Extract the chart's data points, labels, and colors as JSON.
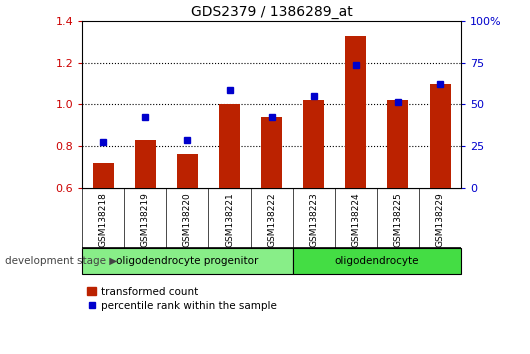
{
  "title": "GDS2379 / 1386289_at",
  "samples": [
    "GSM138218",
    "GSM138219",
    "GSM138220",
    "GSM138221",
    "GSM138222",
    "GSM138223",
    "GSM138224",
    "GSM138225",
    "GSM138229"
  ],
  "transformed_count": [
    0.72,
    0.83,
    0.76,
    1.0,
    0.94,
    1.02,
    1.33,
    1.02,
    1.1
  ],
  "percentile_rank_left": [
    0.82,
    0.94,
    0.83,
    1.07,
    0.94,
    1.04,
    1.19,
    1.01,
    1.1
  ],
  "ylim_left": [
    0.6,
    1.4
  ],
  "ylim_right": [
    0,
    100
  ],
  "yticks_left": [
    0.6,
    0.8,
    1.0,
    1.2,
    1.4
  ],
  "yticks_right": [
    0,
    25,
    50,
    75,
    100
  ],
  "bar_color": "#bb2200",
  "dot_color": "#0000cc",
  "background_color": "#ffffff",
  "left_tick_color": "#cc0000",
  "right_tick_color": "#0000cc",
  "xtick_bg_color": "#cccccc",
  "stage_groups": [
    {
      "label": "oligodendrocyte progenitor",
      "indices": [
        0,
        1,
        2,
        3,
        4
      ],
      "color": "#88ee88"
    },
    {
      "label": "oligodendrocyte",
      "indices": [
        5,
        6,
        7,
        8
      ],
      "color": "#44dd44"
    }
  ],
  "development_stage_label": "development stage",
  "legend_bar_label": "transformed count",
  "legend_dot_label": "percentile rank within the sample"
}
